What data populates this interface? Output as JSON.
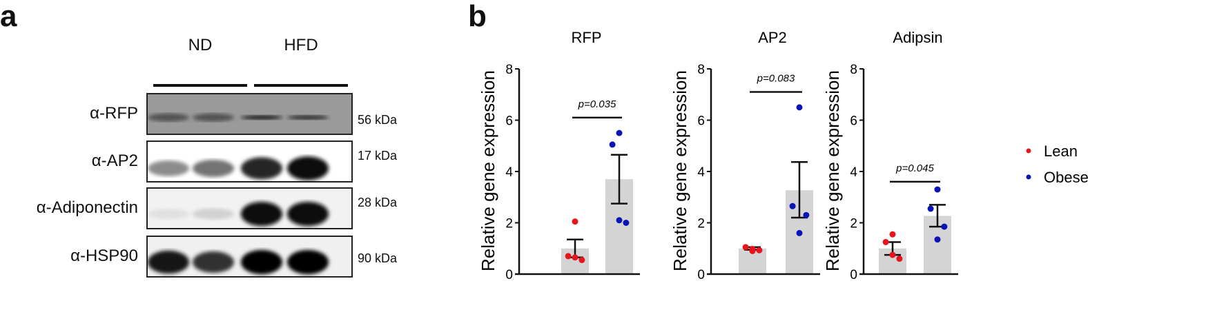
{
  "panel_a": {
    "letter": "a",
    "groups": [
      "ND",
      "HFD"
    ],
    "blots": [
      {
        "antibody": "α-RFP",
        "size": "56 kDa",
        "background": "#9a9a9a",
        "band_darkness": [
          0.35,
          0.35,
          0.85,
          0.75
        ]
      },
      {
        "antibody": "α-AP2",
        "size": "17 kDa",
        "background": "#ffffff",
        "band_darkness": [
          0.45,
          0.55,
          0.85,
          0.95
        ]
      },
      {
        "antibody": "α-Adiponectin",
        "size": "28 kDa",
        "background": "#f2f2f2",
        "band_darkness": [
          0.12,
          0.18,
          0.97,
          0.97
        ]
      },
      {
        "antibody": "α-HSP90",
        "size": "90 kDa",
        "background": "#f0f0f0",
        "band_darkness": [
          0.9,
          0.8,
          0.98,
          0.98
        ]
      }
    ]
  },
  "panel_b": {
    "letter": "b"
  },
  "legend": [
    {
      "label": "Lean",
      "color": "#e8141c"
    },
    {
      "label": "Obese",
      "color": "#0a14b4"
    }
  ],
  "chart_data": [
    {
      "type": "bar",
      "title": "RFP",
      "ylabel": "Relative gene expression",
      "ylim": [
        0,
        8
      ],
      "yticks": [
        "0",
        "2",
        "4",
        "6",
        "8"
      ],
      "categories": [
        "Lean",
        "Obese"
      ],
      "means": [
        1.0,
        3.7
      ],
      "sem_low": [
        0.65,
        2.75
      ],
      "sem_high": [
        1.35,
        4.65
      ],
      "points": [
        [
          2.05,
          0.7,
          0.55,
          0.65
        ],
        [
          5.5,
          5.05,
          2.0,
          2.1
        ]
      ],
      "annotation": {
        "text": "p=0.035",
        "y": 6.1
      }
    },
    {
      "type": "bar",
      "title": "AP2",
      "ylabel": "Relative gene expression",
      "ylim": [
        0,
        8
      ],
      "yticks": [
        "0",
        "2",
        "4",
        "6",
        "8"
      ],
      "categories": [
        "Lean",
        "Obese"
      ],
      "means": [
        1.0,
        3.27
      ],
      "sem_low": [
        0.95,
        2.2
      ],
      "sem_high": [
        1.05,
        4.37
      ],
      "points": [
        [
          0.9,
          1.05,
          0.93,
          0.98
        ],
        [
          6.5,
          2.65,
          2.3,
          1.6
        ]
      ],
      "annotation": {
        "text": "p=0.083",
        "y": 7.1
      }
    },
    {
      "type": "bar",
      "title": "Adipsin",
      "ylabel": "Relative gene expression",
      "ylim": [
        0,
        8
      ],
      "yticks": [
        "0",
        "2",
        "4",
        "6",
        "8"
      ],
      "categories": [
        "Lean",
        "Obese"
      ],
      "means": [
        1.0,
        2.27
      ],
      "sem_low": [
        0.75,
        1.85
      ],
      "sem_high": [
        1.25,
        2.7
      ],
      "points": [
        [
          1.55,
          1.25,
          0.6,
          0.75
        ],
        [
          3.3,
          2.55,
          1.85,
          1.35
        ]
      ],
      "annotation": {
        "text": "p=0.045",
        "y": 3.6
      }
    }
  ]
}
